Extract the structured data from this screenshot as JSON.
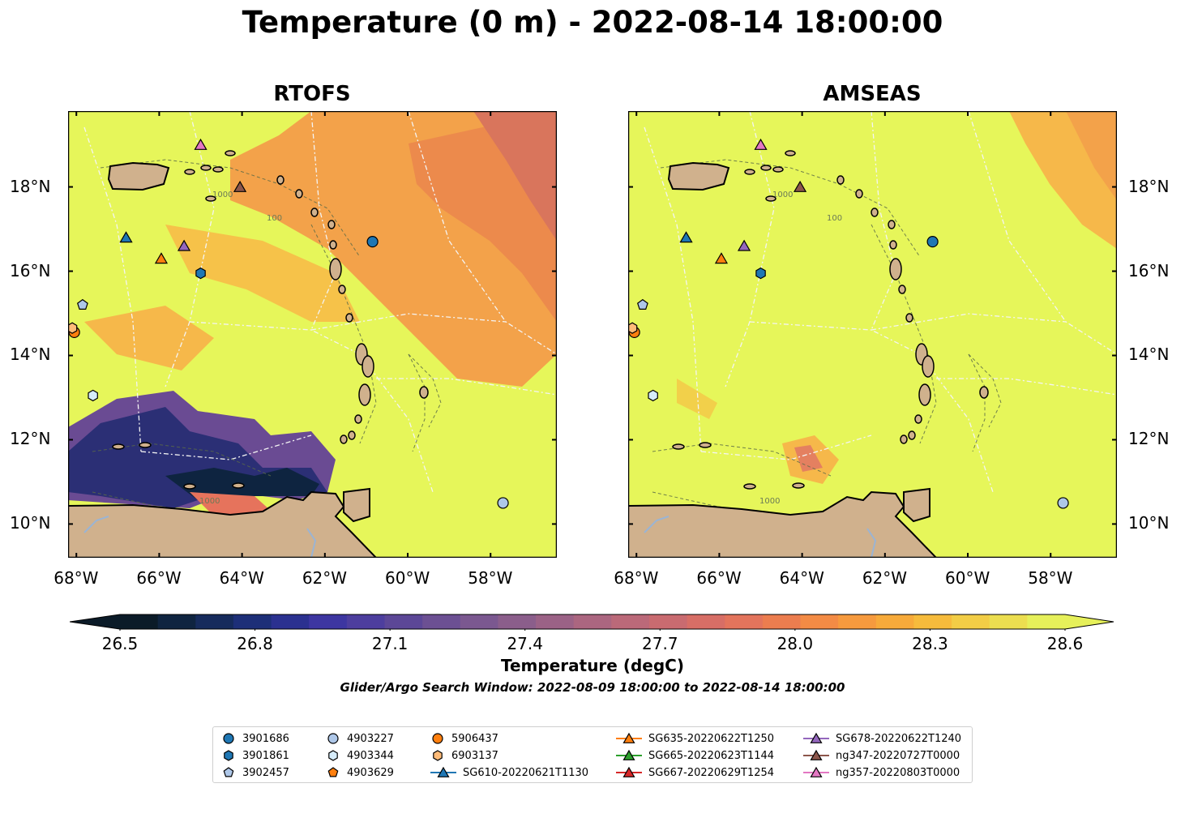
{
  "title": "Temperature (0 m) - 2022-08-14 18:00:00",
  "panels": [
    {
      "name": "rtofs",
      "title": "RTOFS"
    },
    {
      "name": "amseas",
      "title": "AMSEAS"
    }
  ],
  "map": {
    "lon_range": [
      -68.2,
      -56.4
    ],
    "lat_range": [
      9.2,
      19.8
    ],
    "lon_ticks": [
      -68,
      -66,
      -64,
      -62,
      -60,
      -58
    ],
    "lat_ticks": [
      10,
      12,
      14,
      16,
      18
    ],
    "lon_labels": [
      "68°W",
      "66°W",
      "64°W",
      "62°W",
      "60°W",
      "58°W"
    ],
    "lat_labels": [
      "10°N",
      "12°N",
      "14°N",
      "16°N",
      "18°N"
    ],
    "contour_label": "1000",
    "contour_label_2": "100",
    "land_color": "#d0b18d",
    "ocean_color_warm": "#e6f65a",
    "orange_color": "#f29d48"
  },
  "colorbar": {
    "label": "Temperature (degC)",
    "ticks": [
      "26.5",
      "26.8",
      "27.1",
      "27.4",
      "27.7",
      "28.0",
      "28.3",
      "28.6"
    ],
    "min": 26.5,
    "max": 28.6,
    "extend": "both",
    "colors": [
      "#0b1b28",
      "#0f2440",
      "#162b5c",
      "#1d2f78",
      "#2b3190",
      "#3d36a1",
      "#4d3e9e",
      "#5c4797",
      "#6c5093",
      "#7b5890",
      "#8b5e8b",
      "#9b6286",
      "#ab6680",
      "#bb6979",
      "#c96b70",
      "#d76e66",
      "#e3745c",
      "#ec7d4f",
      "#f38b45",
      "#f69a3e",
      "#f7aa3a",
      "#f6bb3c",
      "#f2cd46",
      "#ecde50",
      "#e6f05a"
    ]
  },
  "subtitle": "Glider/Argo Search Window: 2022-08-09 18:00:00 to 2022-08-14 18:00:00",
  "markers": [
    {
      "id": "3901686",
      "shape": "circle",
      "color": "#1f77b4",
      "lon": -60.85,
      "lat": 16.7
    },
    {
      "id": "3901861",
      "shape": "hexagon",
      "color": "#1f77b4",
      "lon": -65.0,
      "lat": 15.95
    },
    {
      "id": "3902457",
      "shape": "pentagon",
      "color": "#aec7e8",
      "lon": -67.85,
      "lat": 15.2
    },
    {
      "id": "4903227",
      "shape": "circle",
      "color": "#aec7e8",
      "lon": -57.7,
      "lat": 10.5
    },
    {
      "id": "4903344",
      "shape": "hexagon",
      "color": "#d6ecfa",
      "lon": -67.6,
      "lat": 13.05
    },
    {
      "id": "5906437",
      "shape": "circle",
      "color": "#ff7f0e",
      "lon": -68.05,
      "lat": 14.55
    },
    {
      "id": "6903137",
      "shape": "hexagon",
      "color": "#ffbb78",
      "lon": -68.1,
      "lat": 14.65
    },
    {
      "id": "SG610-20220621T1130",
      "shape": "triangle",
      "color": "#1f77b4",
      "lon": -66.8,
      "lat": 16.8
    },
    {
      "id": "SG635-20220622T1250",
      "shape": "triangle",
      "color": "#ff7f0e",
      "lon": -65.95,
      "lat": 16.3
    },
    {
      "id": "SG678-20220622T1240",
      "shape": "triangle",
      "color": "#9467bd",
      "lon": -65.4,
      "lat": 16.6
    },
    {
      "id": "ng347-20220727T0000",
      "shape": "triangle",
      "color": "#8c564b",
      "lon": -64.05,
      "lat": 18.0
    },
    {
      "id": "ng357-20220803T0000",
      "shape": "triangle",
      "color": "#e377c2",
      "lon": -65.0,
      "lat": 19.0
    }
  ],
  "legend": [
    {
      "label": "3901686",
      "shape": "circle",
      "color": "#1f77b4",
      "line": false
    },
    {
      "label": "3901861",
      "shape": "hexagon",
      "color": "#1f77b4",
      "line": false
    },
    {
      "label": "3902457",
      "shape": "pentagon",
      "color": "#aec7e8",
      "line": false
    },
    {
      "label": "4903227",
      "shape": "circle",
      "color": "#aec7e8",
      "line": false
    },
    {
      "label": "4903344",
      "shape": "hexagon",
      "color": "#d6ecfa",
      "line": false
    },
    {
      "label": "4903629",
      "shape": "pentagon",
      "color": "#ff7f0e",
      "line": false
    },
    {
      "label": "5906437",
      "shape": "circle",
      "color": "#ff7f0e",
      "line": false
    },
    {
      "label": "6903137",
      "shape": "hexagon",
      "color": "#ffbb78",
      "line": false
    },
    {
      "label": "SG610-20220621T1130",
      "shape": "triangle",
      "color": "#1f77b4",
      "line": true
    },
    {
      "label": "SG635-20220622T1250",
      "shape": "triangle",
      "color": "#ff7f0e",
      "line": true
    },
    {
      "label": "SG665-20220623T1144",
      "shape": "triangle",
      "color": "#2ca02c",
      "line": true
    },
    {
      "label": "SG667-20220629T1254",
      "shape": "triangle",
      "color": "#d62728",
      "line": true
    },
    {
      "label": "SG678-20220622T1240",
      "shape": "triangle",
      "color": "#9467bd",
      "line": true
    },
    {
      "label": "ng347-20220727T0000",
      "shape": "triangle",
      "color": "#8c564b",
      "line": true
    },
    {
      "label": "ng357-20220803T0000",
      "shape": "triangle",
      "color": "#e377c2",
      "line": true
    }
  ]
}
